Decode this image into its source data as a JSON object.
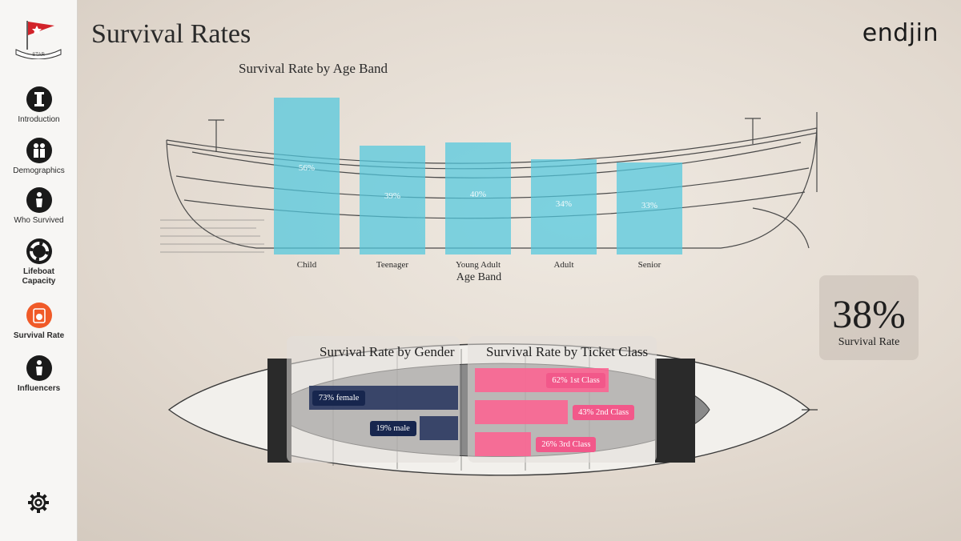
{
  "nav": {
    "items": [
      {
        "label": "Introduction",
        "icon": "info-icon"
      },
      {
        "label": "Demographics",
        "icon": "family-icon"
      },
      {
        "label": "Who Survived",
        "icon": "person-icon"
      },
      {
        "label": "Lifeboat\nCapacity",
        "icon": "lifebuoy-icon"
      },
      {
        "label": "Survival Rate",
        "icon": "washer-icon",
        "active": true
      },
      {
        "label": "Influencers",
        "icon": "person-icon"
      }
    ],
    "logo_text": "STAR"
  },
  "header": {
    "title": "Survival Rates",
    "brand": "endjin"
  },
  "kpi": {
    "value": "38%",
    "label": "Survival Rate"
  },
  "chart_data": [
    {
      "type": "bar",
      "title": "Survival Rate by Age Band",
      "xlabel": "Age Band",
      "ylabel": "",
      "categories": [
        "Child",
        "Teenager",
        "Young Adult",
        "Adult",
        "Senior"
      ],
      "values": [
        56,
        39,
        40,
        34,
        33
      ],
      "labels": [
        "56%",
        "39%",
        "40%",
        "34%",
        "33%"
      ],
      "ylim": [
        0,
        100
      ],
      "color": "#50c8de"
    },
    {
      "type": "bar",
      "orientation": "horizontal",
      "title": "Survival Rate by Gender",
      "categories": [
        "female",
        "male"
      ],
      "values": [
        73,
        19
      ],
      "labels": [
        "73% female",
        "19% male"
      ],
      "color": "#1c2c58"
    },
    {
      "type": "bar",
      "orientation": "horizontal",
      "title": "Survival Rate by Ticket Class",
      "categories": [
        "1st Class",
        "2nd Class",
        "3rd Class"
      ],
      "values": [
        62,
        43,
        26
      ],
      "labels": [
        "62% 1st Class",
        "43% 2nd Class",
        "26% 3rd Class"
      ],
      "color": "#ff5f91"
    }
  ]
}
